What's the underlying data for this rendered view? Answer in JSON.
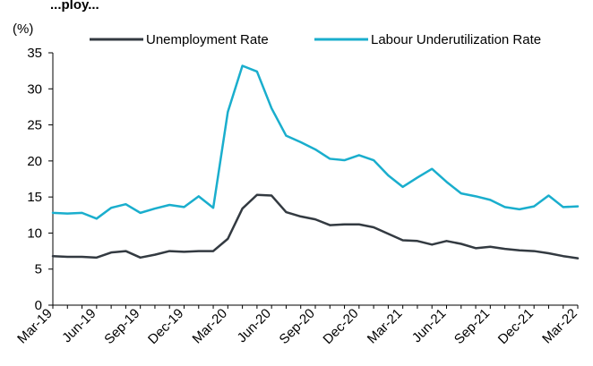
{
  "title_fragment": "...ploy...",
  "chart_data": {
    "type": "line",
    "ylabel": "(%)",
    "ylim": [
      0,
      35
    ],
    "yticks": [
      0,
      5,
      10,
      15,
      20,
      25,
      30,
      35
    ],
    "grid": false,
    "legend_position": "top",
    "x": [
      "Mar-19",
      "Apr-19",
      "May-19",
      "Jun-19",
      "Jul-19",
      "Aug-19",
      "Sep-19",
      "Oct-19",
      "Nov-19",
      "Dec-19",
      "Jan-20",
      "Feb-20",
      "Mar-20",
      "Apr-20",
      "May-20",
      "Jun-20",
      "Jul-20",
      "Aug-20",
      "Sep-20",
      "Oct-20",
      "Nov-20",
      "Dec-20",
      "Jan-21",
      "Feb-21",
      "Mar-21",
      "Apr-21",
      "May-21",
      "Jun-21",
      "Jul-21",
      "Aug-21",
      "Sep-21",
      "Oct-21",
      "Nov-21",
      "Dec-21",
      "Jan-22",
      "Feb-22",
      "Mar-22"
    ],
    "xtick_labels": [
      "Mar-19",
      "Jun-19",
      "Sep-19",
      "Dec-19",
      "Mar-20",
      "Jun-20",
      "Sep-20",
      "Dec-20",
      "Mar-21",
      "Jun-21",
      "Sep-21",
      "Dec-21",
      "Mar-22"
    ],
    "series": [
      {
        "name": "Unemployment Rate",
        "color": "#333a41",
        "values": [
          6.8,
          6.7,
          6.7,
          6.6,
          7.3,
          7.5,
          6.6,
          7.0,
          7.5,
          7.4,
          7.5,
          7.5,
          9.2,
          13.4,
          15.3,
          15.2,
          12.9,
          12.3,
          11.9,
          11.1,
          11.2,
          11.2,
          10.8,
          9.9,
          9.0,
          8.9,
          8.4,
          8.9,
          8.5,
          7.9,
          8.1,
          7.8,
          7.6,
          7.5,
          7.2,
          6.8,
          6.5
        ]
      },
      {
        "name": "Labour Underutilization Rate",
        "color": "#1aaecd",
        "values": [
          12.8,
          12.7,
          12.8,
          12.0,
          13.5,
          14.0,
          12.8,
          13.4,
          13.9,
          13.6,
          15.1,
          13.5,
          26.8,
          33.2,
          32.4,
          27.3,
          23.5,
          22.6,
          21.6,
          20.3,
          20.1,
          20.8,
          20.1,
          18.0,
          16.4,
          17.7,
          18.9,
          17.1,
          15.5,
          15.1,
          14.6,
          13.6,
          13.3,
          13.7,
          15.2,
          13.6,
          13.7
        ]
      }
    ]
  }
}
